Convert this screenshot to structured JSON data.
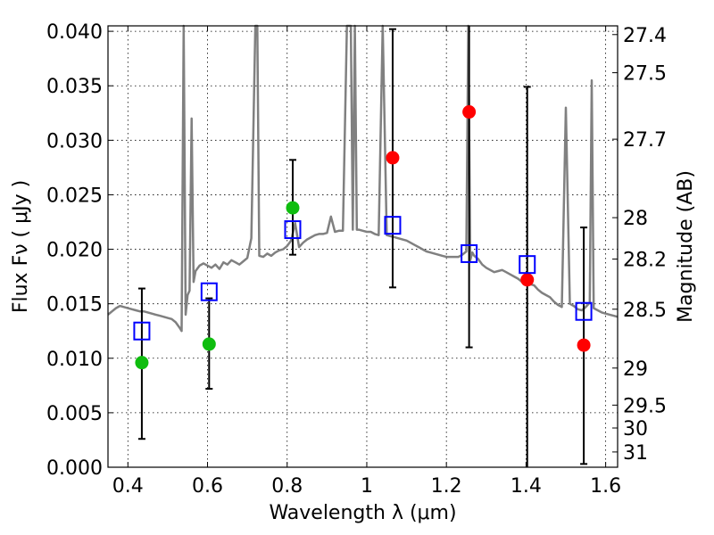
{
  "chart_data": {
    "type": "scatter",
    "xlabel": "Wavelength  λ (μm)",
    "ylabel": "Flux  Fν  ( μJy )",
    "ylabel_right": "Magnitude (AB)",
    "xlim": [
      0.35,
      1.63
    ],
    "ylim": [
      0.0,
      0.0405
    ],
    "grid": true,
    "x_ticks": [
      {
        "value": 0.4,
        "label": "0.4"
      },
      {
        "value": 0.6,
        "label": "0.6"
      },
      {
        "value": 0.8,
        "label": "0.8"
      },
      {
        "value": 1.0,
        "label": "1"
      },
      {
        "value": 1.2,
        "label": "1.2"
      },
      {
        "value": 1.4,
        "label": "1.4"
      },
      {
        "value": 1.6,
        "label": "1.6"
      }
    ],
    "y_ticks": [
      {
        "value": 0.0,
        "label": "0.000"
      },
      {
        "value": 0.005,
        "label": "0.005"
      },
      {
        "value": 0.01,
        "label": "0.010"
      },
      {
        "value": 0.015,
        "label": "0.015"
      },
      {
        "value": 0.02,
        "label": "0.020"
      },
      {
        "value": 0.025,
        "label": "0.025"
      },
      {
        "value": 0.03,
        "label": "0.030"
      },
      {
        "value": 0.035,
        "label": "0.035"
      },
      {
        "value": 0.04,
        "label": "0.040"
      }
    ],
    "magnitude_ticks": [
      {
        "flux": 0.0397,
        "label": "27.4"
      },
      {
        "flux": 0.0362,
        "label": "27.5"
      },
      {
        "flux": 0.0301,
        "label": "27.7"
      },
      {
        "flux": 0.0229,
        "label": "28"
      },
      {
        "flux": 0.0191,
        "label": "28.2"
      },
      {
        "flux": 0.0145,
        "label": "28.5"
      },
      {
        "flux": 0.0091,
        "label": "29"
      },
      {
        "flux": 0.0057,
        "label": "29.5"
      },
      {
        "flux": 0.0036,
        "label": "30"
      },
      {
        "flux": 0.0014,
        "label": "31"
      }
    ],
    "model_spectrum": {
      "color": "#808080",
      "x": [
        0.35,
        0.36,
        0.37,
        0.38,
        0.39,
        0.4,
        0.41,
        0.42,
        0.43,
        0.44,
        0.45,
        0.46,
        0.47,
        0.48,
        0.49,
        0.5,
        0.51,
        0.52,
        0.53,
        0.535,
        0.54,
        0.545,
        0.55,
        0.555,
        0.56,
        0.565,
        0.57,
        0.58,
        0.59,
        0.6,
        0.61,
        0.62,
        0.63,
        0.64,
        0.65,
        0.66,
        0.67,
        0.68,
        0.69,
        0.7,
        0.71,
        0.72,
        0.725,
        0.73,
        0.74,
        0.75,
        0.76,
        0.77,
        0.78,
        0.79,
        0.8,
        0.81,
        0.82,
        0.83,
        0.84,
        0.85,
        0.86,
        0.87,
        0.88,
        0.89,
        0.9,
        0.91,
        0.92,
        0.93,
        0.94,
        0.95,
        0.96,
        0.965,
        0.97,
        0.975,
        0.98,
        0.99,
        1.0,
        1.01,
        1.02,
        1.03,
        1.04,
        1.05,
        1.06,
        1.07,
        1.08,
        1.09,
        1.1,
        1.11,
        1.12,
        1.13,
        1.14,
        1.15,
        1.16,
        1.17,
        1.18,
        1.19,
        1.2,
        1.21,
        1.22,
        1.23,
        1.24,
        1.25,
        1.255,
        1.26,
        1.265,
        1.27,
        1.28,
        1.29,
        1.3,
        1.31,
        1.32,
        1.33,
        1.34,
        1.35,
        1.36,
        1.37,
        1.38,
        1.39,
        1.4,
        1.41,
        1.42,
        1.43,
        1.44,
        1.45,
        1.46,
        1.47,
        1.48,
        1.49,
        1.5,
        1.51,
        1.52,
        1.53,
        1.54,
        1.55,
        1.56,
        1.565,
        1.57,
        1.58,
        1.59,
        1.6,
        1.61,
        1.62,
        1.63
      ],
      "y": [
        0.014,
        0.0143,
        0.0146,
        0.0148,
        0.0147,
        0.0146,
        0.0145,
        0.0144,
        0.0143,
        0.0143,
        0.0142,
        0.0141,
        0.014,
        0.0139,
        0.0138,
        0.0137,
        0.0136,
        0.0133,
        0.0128,
        0.0125,
        0.0405,
        0.014,
        0.0158,
        0.0162,
        0.032,
        0.017,
        0.018,
        0.0185,
        0.0187,
        0.0185,
        0.0183,
        0.0186,
        0.0182,
        0.0188,
        0.0186,
        0.019,
        0.0188,
        0.0186,
        0.0189,
        0.0192,
        0.021,
        0.0405,
        0.0405,
        0.0194,
        0.0193,
        0.0196,
        0.0194,
        0.0197,
        0.0199,
        0.02,
        0.0203,
        0.0208,
        0.0224,
        0.0202,
        0.0206,
        0.0209,
        0.0211,
        0.0213,
        0.0214,
        0.0214,
        0.0215,
        0.023,
        0.0216,
        0.0217,
        0.0217,
        0.0405,
        0.0405,
        0.0218,
        0.0405,
        0.0218,
        0.0218,
        0.0217,
        0.0216,
        0.0216,
        0.0214,
        0.0213,
        0.0405,
        0.0213,
        0.0212,
        0.0211,
        0.021,
        0.0209,
        0.0208,
        0.0206,
        0.0204,
        0.0202,
        0.02,
        0.0198,
        0.0197,
        0.0196,
        0.0195,
        0.0194,
        0.0193,
        0.0193,
        0.0193,
        0.0193,
        0.0195,
        0.0198,
        0.0405,
        0.019,
        0.0197,
        0.0194,
        0.0191,
        0.0186,
        0.0183,
        0.0181,
        0.0179,
        0.018,
        0.0181,
        0.0179,
        0.0177,
        0.0175,
        0.0173,
        0.017,
        0.0169,
        0.0168,
        0.0167,
        0.0163,
        0.016,
        0.0158,
        0.0156,
        0.0152,
        0.0149,
        0.0147,
        0.033,
        0.015,
        0.0148,
        0.0145,
        0.0144,
        0.0147,
        0.0151,
        0.0355,
        0.0146,
        0.0144,
        0.0142,
        0.0141,
        0.014,
        0.0139,
        0.0138
      ]
    },
    "series": [
      {
        "color": "#0fbd0f",
        "marker": "circle",
        "points": [
          {
            "x": 0.435,
            "y": 0.0096,
            "err_low": 0.0026,
            "err_high": 0.0164
          },
          {
            "x": 0.604,
            "y": 0.0113,
            "err_low": 0.0072,
            "err_high": 0.0155
          },
          {
            "x": 0.814,
            "y": 0.0238,
            "err_low": 0.0195,
            "err_high": 0.0282
          }
        ]
      },
      {
        "color": "#ff0000",
        "marker": "circle",
        "points": [
          {
            "x": 1.065,
            "y": 0.0284,
            "err_low": 0.0165,
            "err_high": 0.0402
          },
          {
            "x": 1.257,
            "y": 0.0326,
            "err_low": 0.011,
            "err_high": 0.0405
          },
          {
            "x": 1.403,
            "y": 0.0172,
            "err_low": 0.0,
            "err_high": 0.0349
          },
          {
            "x": 1.545,
            "y": 0.0112,
            "err_low": 0.0003,
            "err_high": 0.022
          }
        ]
      },
      {
        "color": "#0000ff",
        "marker": "square-open",
        "points": [
          {
            "x": 0.435,
            "y": 0.0125
          },
          {
            "x": 0.604,
            "y": 0.0161
          },
          {
            "x": 0.814,
            "y": 0.0218
          },
          {
            "x": 1.065,
            "y": 0.0222
          },
          {
            "x": 1.257,
            "y": 0.0196
          },
          {
            "x": 1.403,
            "y": 0.0186
          },
          {
            "x": 1.545,
            "y": 0.0143
          }
        ]
      }
    ]
  }
}
